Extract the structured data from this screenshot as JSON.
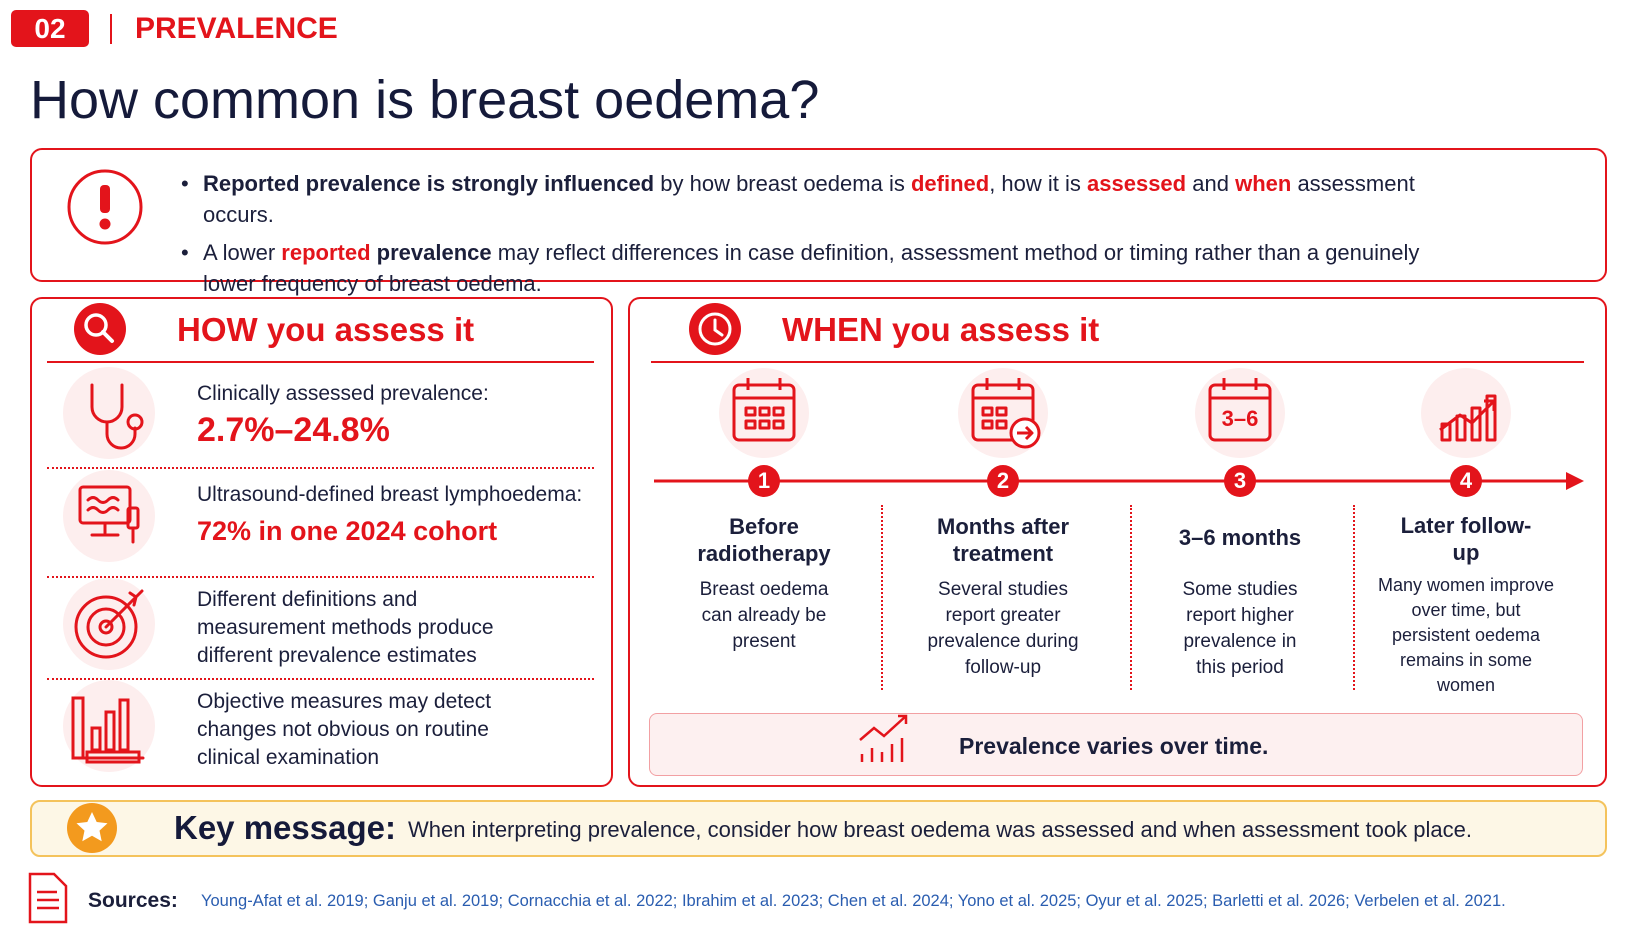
{
  "header": {
    "number": "02",
    "section": "PREVALENCE",
    "title": "How common is breast oedema?"
  },
  "alert": {
    "bullets": [
      [
        "Reported prevalence is strongly influenced",
        "by how breast oedema is",
        "defined",
        ", how it is",
        "assessed",
        "and",
        "when",
        "assessment occurs."
      ],
      [
        "A lower",
        "reported",
        "prevalence",
        "may reflect differences in case definition, assessment method or timing rather than a genuinely lower frequency of breast oedema."
      ]
    ]
  },
  "how": {
    "title": "HOW you assess it",
    "items": [
      {
        "label": "Clinically assessed prevalence:",
        "value": "2.7%–24.8%"
      },
      {
        "label": "Ultrasound-defined breast lymphoedema:",
        "value": "72% in one 2024 cohort"
      },
      {
        "text": "Different definitions and measurement methods produce different prevalence estimates"
      },
      {
        "text": "Objective measures may detect changes not obvious on routine clinical examination"
      }
    ]
  },
  "when": {
    "title": "WHEN you assess it",
    "steps": [
      {
        "number": 1,
        "title": "Before radiotherapy",
        "text": "Breast oedema can already be present"
      },
      {
        "number": 2,
        "title": "Months after treatment",
        "text": "Several studies report greater prevalence during follow-up"
      },
      {
        "number": 3,
        "icon_text": "3–6",
        "title": "3–6 months",
        "text": "Some studies report higher prevalence in this period"
      },
      {
        "number": 4,
        "title": "Later follow-up",
        "text": "Many women improve over time, but persistent oedema remains in some women"
      }
    ],
    "footer": "Prevalence varies over time."
  },
  "key_message": {
    "label": "Key message:",
    "text": "When interpreting prevalence, consider how breast oedema was assessed and when assessment took place."
  },
  "sources": {
    "label": "Sources:",
    "text": "Young-Afat et al. 2019; Ganju et al. 2019; Cornacchia et al. 2022; Ibrahim et al. 2023; Chen et al. 2024; Yono et al. 2025; Oyur et al. 2025; Barletti et al. 2026; Verbelen et al. 2021."
  }
}
